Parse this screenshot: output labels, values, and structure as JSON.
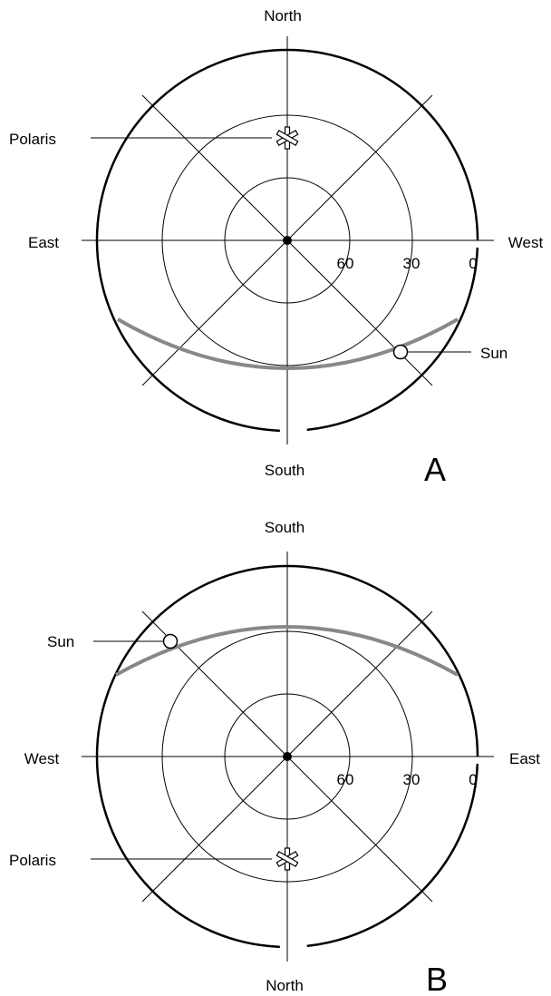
{
  "colors": {
    "ink": "#000000",
    "sun_path": "#888888",
    "background": "#ffffff"
  },
  "diagrams": [
    {
      "panel": "A",
      "cardinals": {
        "top": "North",
        "bottom": "South",
        "left": "East",
        "right": "West"
      },
      "altitude_labels": [
        "60",
        "30",
        "0"
      ],
      "polaris_label": "Polaris",
      "sun_label": "Sun"
    },
    {
      "panel": "B",
      "cardinals": {
        "top": "South",
        "bottom": "North",
        "left": "West",
        "right": "East"
      },
      "altitude_labels": [
        "60",
        "30",
        "0"
      ],
      "polaris_label": "Polaris",
      "sun_label": "Sun"
    }
  ]
}
